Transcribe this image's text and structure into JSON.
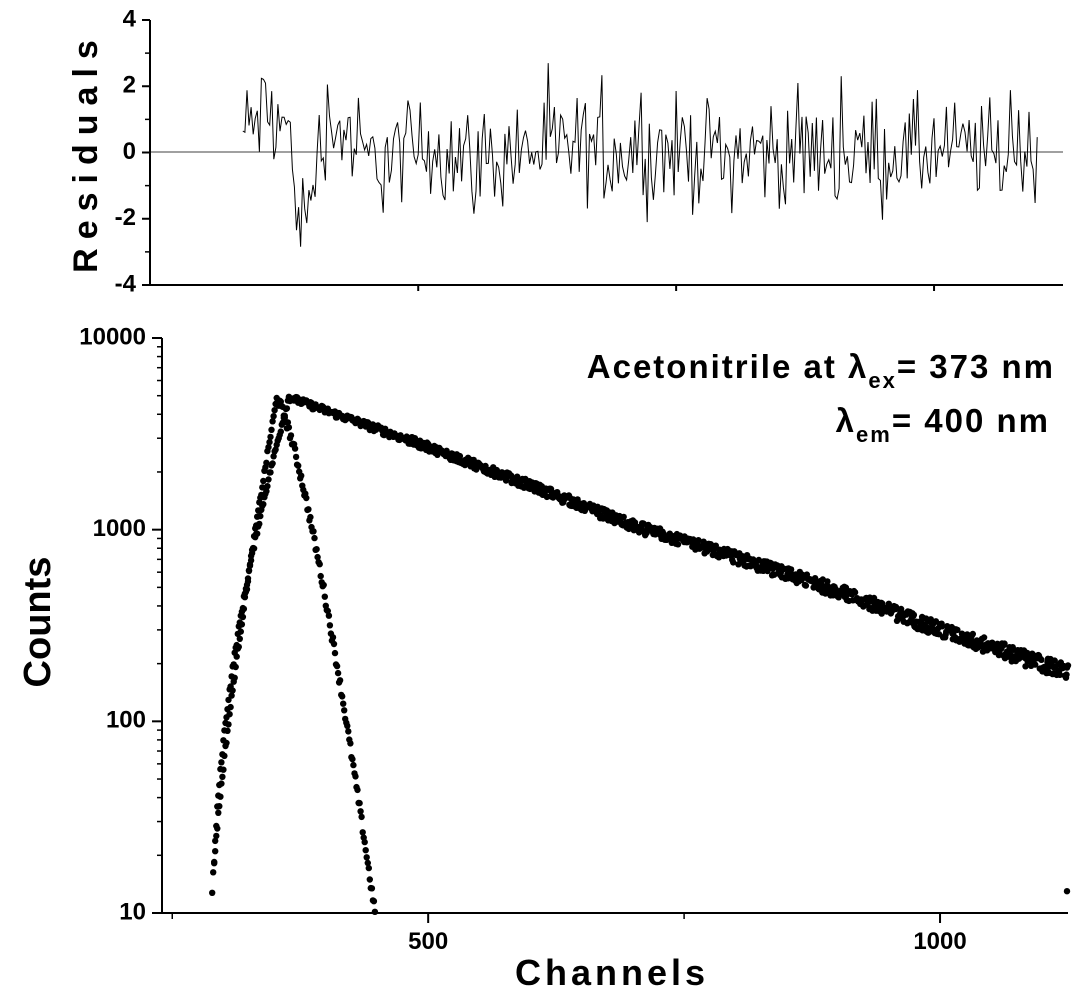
{
  "chart_data": [
    {
      "type": "line",
      "panel": "residuals",
      "ylabel": "Residuals",
      "xlim": [
        240,
        1125
      ],
      "ylim": [
        -4,
        4
      ],
      "yticks": [
        4,
        2,
        0,
        -2,
        -4
      ],
      "xticks": [
        500,
        1000
      ],
      "zero_line": true,
      "series": [
        {
          "x_start": 330,
          "x_end": 1100,
          "x_step": 2,
          "anchors": [
            {
              "x": 330,
              "y": 0.5
            },
            {
              "x": 350,
              "y": 1.2
            },
            {
              "x": 372,
              "y": 0.8
            },
            {
              "x": 382,
              "y": -1.2
            },
            {
              "x": 390,
              "y": -2.4
            },
            {
              "x": 400,
              "y": -0.5
            },
            {
              "x": 410,
              "y": 1.0
            },
            {
              "x": 430,
              "y": 0.6
            },
            {
              "x": 450,
              "y": -0.3
            },
            {
              "x": 520,
              "y": 0.2
            },
            {
              "x": 560,
              "y": -0.3
            },
            {
              "x": 600,
              "y": 0.1
            },
            {
              "x": 800,
              "y": 0.0
            },
            {
              "x": 1000,
              "y": 0.0
            },
            {
              "x": 1100,
              "y": 0.1
            }
          ],
          "noise_amplitude": 1.6,
          "min": -3.6,
          "max": 2.7
        }
      ]
    },
    {
      "type": "scatter",
      "panel": "decay",
      "xlabel": "Channels",
      "ylabel": "Counts",
      "yscale": "log",
      "xlim": [
        240,
        1125
      ],
      "ylim": [
        10,
        10000
      ],
      "xticks": [
        500,
        1000
      ],
      "yticks": [
        10,
        100,
        1000,
        10000
      ],
      "annotations": {
        "line1_text": "Acetonitrile at λ",
        "line1_sub": "ex",
        "line1_tail": "= 373 nm",
        "line2_text": "λ",
        "line2_sub": "em",
        "line2_tail": "= 400 nm"
      },
      "series": [
        {
          "role": "instrument-response",
          "shape": "peak",
          "peak_x": 352,
          "peak_y": 4800,
          "rise_from": [
            288,
            10
          ],
          "fall_to": [
            448,
            10
          ]
        },
        {
          "role": "sample-decay",
          "shape": "rise-decay",
          "peak_x": 364,
          "peak_y": 4900,
          "rise_from": [
            290,
            10
          ],
          "decay_points": [
            {
              "x": 364,
              "y": 4900
            },
            {
              "x": 500,
              "y": 2700
            },
            {
              "x": 600,
              "y": 1700
            },
            {
              "x": 700,
              "y": 1050
            },
            {
              "x": 800,
              "y": 720
            },
            {
              "x": 900,
              "y": 480
            },
            {
              "x": 1000,
              "y": 300
            },
            {
              "x": 1100,
              "y": 200
            },
            {
              "x": 1125,
              "y": 180
            }
          ]
        }
      ]
    }
  ]
}
